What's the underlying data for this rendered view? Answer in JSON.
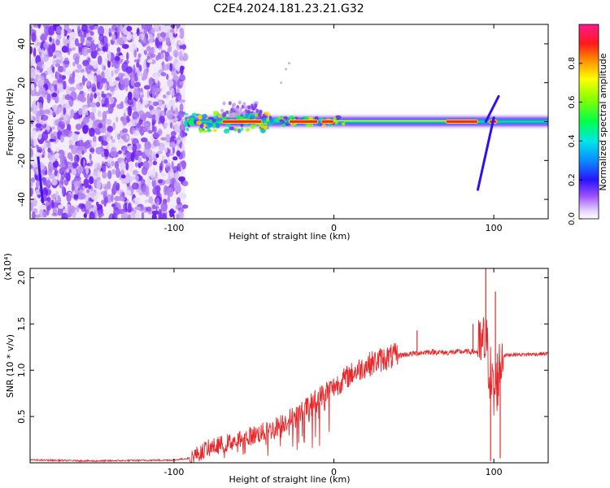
{
  "figure": {
    "title": "C2E4.2024.181.23.21.G32"
  },
  "chart_data": [
    {
      "type": "heatmap",
      "title": "C2E4.2024.181.23.21.G32",
      "xlabel": "Height of straight line (km)",
      "ylabel": "Frequency (Hz)",
      "xlim": [
        -190,
        134
      ],
      "ylim": [
        -50,
        50
      ],
      "x_ticks": [
        -100,
        0,
        100
      ],
      "x_tick_labels": [
        "-100",
        "0",
        "100"
      ],
      "y_ticks": [
        -40,
        -20,
        0,
        20,
        40
      ],
      "y_tick_labels": [
        "-40",
        "-20",
        "0",
        "20",
        "40"
      ],
      "grid": false,
      "colorbar": {
        "label": "Normalized spectral amplitude",
        "range": [
          0,
          1
        ],
        "ticks": [
          0.0,
          0.2,
          0.4,
          0.6,
          0.8
        ],
        "tick_labels": [
          "0.0",
          "0.2",
          "0.4",
          "0.6",
          "0.8"
        ]
      },
      "features": {
        "noise_region_x": [
          -190,
          -93
        ],
        "main_band_freq": 0,
        "main_band_x": [
          -93,
          134
        ],
        "peak_amplitude_segments_x": [
          [
            -70,
            -45
          ],
          [
            -28,
            -10
          ],
          [
            -8,
            0
          ],
          [
            70,
            90
          ],
          [
            97,
            102
          ]
        ],
        "oblique_streaks": [
          {
            "x": [
              90,
              100
            ],
            "freq": [
              -35,
              2
            ]
          },
          {
            "x": [
              95,
              103
            ],
            "freq": [
              0,
              13
            ]
          }
        ]
      }
    },
    {
      "type": "line",
      "xlabel": "Height of straight line (km)",
      "ylabel": "SNR (10 * v/v)",
      "y_scale_label": "(x10⁴)",
      "xlim": [
        -190,
        134
      ],
      "ylim": [
        0,
        2.1
      ],
      "x_ticks": [
        -100,
        0,
        100
      ],
      "x_tick_labels": [
        "-100",
        "0",
        "100"
      ],
      "y_ticks": [
        0.5,
        1.0,
        1.5,
        2.0
      ],
      "y_tick_labels": [
        "0.5",
        "1.0",
        "1.5",
        "2.0"
      ],
      "grid": false,
      "series": [
        {
          "color": "#e8282a",
          "x": [
            -190,
            -150,
            -100,
            -90,
            -80,
            -70,
            -60,
            -50,
            -40,
            -30,
            -20,
            -10,
            0,
            10,
            20,
            30,
            40,
            50,
            60,
            70,
            80,
            90,
            95,
            100,
            105,
            110,
            120,
            134
          ],
          "values": [
            0.03,
            0.02,
            0.03,
            0.05,
            0.15,
            0.2,
            0.25,
            0.3,
            0.35,
            0.45,
            0.55,
            0.7,
            0.82,
            0.95,
            1.05,
            1.12,
            1.16,
            1.18,
            1.2,
            1.19,
            1.2,
            1.2,
            1.3,
            0.7,
            1.15,
            1.17,
            1.17,
            1.18
          ],
          "spikes": [
            {
              "x": 52,
              "value": 1.43
            },
            {
              "x": 87,
              "value": 1.5
            },
            {
              "x": 95,
              "value": 2.1
            },
            {
              "x": 98,
              "value": 0.02
            },
            {
              "x": 101,
              "value": 1.85
            },
            {
              "x": 104,
              "value": 0.05
            }
          ]
        }
      ]
    }
  ]
}
